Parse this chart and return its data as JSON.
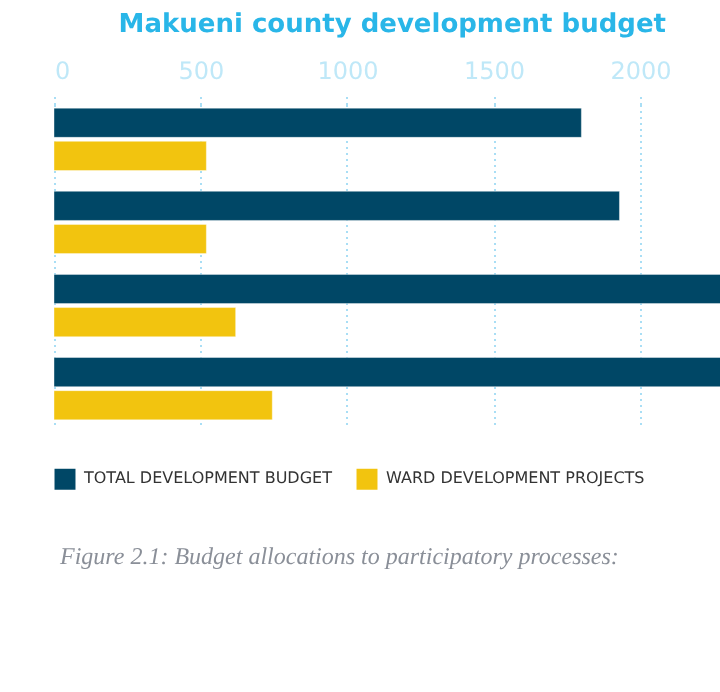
{
  "chart_data": {
    "type": "bar",
    "orientation": "horizontal",
    "title": "Makueni county development budget",
    "categories": [
      null,
      null,
      null,
      null
    ],
    "series": [
      {
        "name": "TOTAL DEVELOPMENT BUDGET",
        "color": "#004766",
        "values": [
          1800,
          1930,
          2280,
          2280
        ]
      },
      {
        "name": "WARD DEVELOPMENT PROJECTS",
        "color": "#f2c40f",
        "values": [
          520,
          520,
          620,
          745
        ]
      }
    ],
    "xlim": [
      0,
      2280
    ],
    "xticks": [
      0,
      500,
      1000,
      1500,
      2000
    ],
    "grid": "x",
    "legend": "bottom",
    "tick_labels": "x",
    "annotations": [
      "Figure 2.1: Budget allocations to participatory processes:"
    ]
  }
}
